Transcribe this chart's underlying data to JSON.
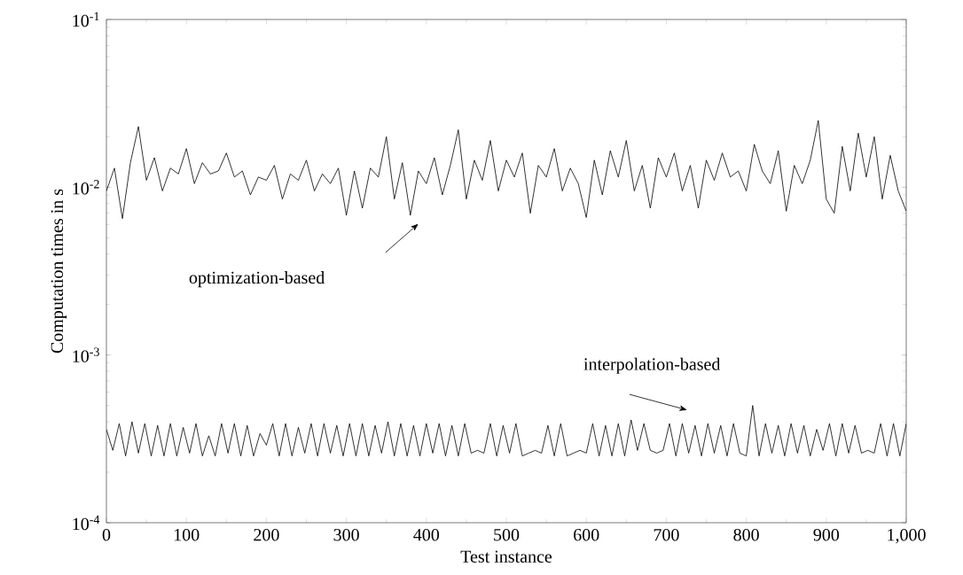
{
  "chart_data": {
    "type": "line",
    "xlabel": "Test instance",
    "ylabel": "Computation times in s",
    "log": true,
    "grid": false,
    "marker": "none",
    "line_style": "solid",
    "xlim": [
      0,
      1000
    ],
    "ylim": [
      0.0001,
      0.1
    ],
    "xticks": [
      0,
      100,
      200,
      300,
      400,
      500,
      600,
      700,
      800,
      900,
      {
        "value": 1000,
        "label": "1,000"
      }
    ],
    "yticks": [
      {
        "value": 0.0001,
        "label": "10$^{-4}$"
      },
      {
        "value": 0.001,
        "label": "10$^{-3}$"
      },
      {
        "value": 0.01,
        "label": "10$^{-2}$"
      },
      {
        "value": 0.1,
        "label": "10$^{-1}$"
      }
    ],
    "annotations": [
      "optimization-based",
      "interpolation-based"
    ],
    "series": [
      {
        "color": "#000000",
        "x": [
          0,
          10,
          20,
          30,
          40,
          50,
          60,
          70,
          80,
          90,
          100,
          110,
          120,
          130,
          140,
          150,
          160,
          170,
          180,
          190,
          200,
          210,
          220,
          230,
          240,
          250,
          260,
          270,
          280,
          290,
          300,
          310,
          320,
          330,
          340,
          350,
          360,
          370,
          380,
          390,
          400,
          410,
          420,
          430,
          440,
          450,
          460,
          470,
          480,
          490,
          500,
          510,
          520,
          530,
          540,
          550,
          560,
          570,
          580,
          590,
          600,
          610,
          620,
          630,
          640,
          650,
          660,
          670,
          680,
          690,
          700,
          710,
          720,
          730,
          740,
          750,
          760,
          770,
          780,
          790,
          800,
          810,
          820,
          830,
          840,
          850,
          860,
          870,
          880,
          890,
          900,
          910,
          920,
          930,
          940,
          950,
          960,
          970,
          980,
          990,
          1000
        ],
        "values": [
          0.0095,
          0.013,
          0.0065,
          0.014,
          0.023,
          0.011,
          0.015,
          0.0095,
          0.013,
          0.012,
          0.017,
          0.0105,
          0.014,
          0.012,
          0.0125,
          0.016,
          0.0115,
          0.0125,
          0.009,
          0.0115,
          0.011,
          0.0135,
          0.0085,
          0.012,
          0.011,
          0.0145,
          0.0095,
          0.012,
          0.0105,
          0.013,
          0.0068,
          0.0125,
          0.0075,
          0.013,
          0.0115,
          0.02,
          0.0085,
          0.014,
          0.0068,
          0.0125,
          0.0105,
          0.015,
          0.009,
          0.0135,
          0.022,
          0.0085,
          0.0145,
          0.011,
          0.019,
          0.0095,
          0.0145,
          0.0115,
          0.016,
          0.007,
          0.0135,
          0.0115,
          0.017,
          0.0095,
          0.013,
          0.0105,
          0.0066,
          0.0145,
          0.009,
          0.0165,
          0.0115,
          0.019,
          0.0095,
          0.0135,
          0.0075,
          0.015,
          0.0115,
          0.016,
          0.0095,
          0.0135,
          0.0075,
          0.0145,
          0.011,
          0.016,
          0.0115,
          0.0125,
          0.0095,
          0.018,
          0.0125,
          0.0105,
          0.0165,
          0.0072,
          0.0135,
          0.0105,
          0.0145,
          0.025,
          0.0085,
          0.007,
          0.0175,
          0.0095,
          0.021,
          0.0115,
          0.02,
          0.0085,
          0.0155,
          0.0095,
          0.0072
        ]
      },
      {
        "color": "#000000",
        "x": [
          0,
          8,
          16,
          24,
          32,
          40,
          48,
          56,
          64,
          72,
          80,
          88,
          96,
          104,
          112,
          120,
          128,
          136,
          144,
          152,
          160,
          168,
          176,
          184,
          192,
          200,
          208,
          216,
          224,
          232,
          240,
          248,
          256,
          264,
          272,
          280,
          288,
          296,
          304,
          312,
          320,
          328,
          336,
          344,
          352,
          360,
          368,
          376,
          384,
          392,
          400,
          408,
          416,
          424,
          432,
          440,
          448,
          456,
          464,
          472,
          480,
          488,
          496,
          504,
          512,
          520,
          528,
          536,
          544,
          552,
          560,
          568,
          576,
          584,
          592,
          600,
          608,
          616,
          624,
          632,
          640,
          648,
          656,
          664,
          672,
          680,
          688,
          696,
          704,
          712,
          720,
          728,
          736,
          744,
          752,
          760,
          768,
          776,
          784,
          792,
          800,
          808,
          816,
          824,
          832,
          840,
          848,
          856,
          864,
          872,
          880,
          888,
          896,
          904,
          912,
          920,
          928,
          936,
          944,
          952,
          960,
          968,
          976,
          984,
          992,
          1000
        ],
        "values": [
          0.00036,
          0.00027,
          0.00039,
          0.00025,
          0.0004,
          0.00026,
          0.00039,
          0.00025,
          0.00038,
          0.00025,
          0.00039,
          0.00025,
          0.00037,
          0.00026,
          0.00039,
          0.00025,
          0.00033,
          0.00025,
          0.00039,
          0.00026,
          0.00039,
          0.00025,
          0.00038,
          0.00025,
          0.00034,
          0.00029,
          0.00039,
          0.00025,
          0.00039,
          0.00025,
          0.00037,
          0.00026,
          0.00039,
          0.00025,
          0.00039,
          0.00026,
          0.00038,
          0.00025,
          0.00039,
          0.00025,
          0.00039,
          0.00025,
          0.00038,
          0.00026,
          0.0004,
          0.00025,
          0.00039,
          0.00025,
          0.00038,
          0.00025,
          0.00039,
          0.00026,
          0.00039,
          0.00025,
          0.00038,
          0.00025,
          0.00039,
          0.00026,
          0.00027,
          0.00026,
          0.00039,
          0.00025,
          0.00038,
          0.00026,
          0.00039,
          0.00025,
          0.00026,
          0.00027,
          0.00026,
          0.00038,
          0.00025,
          0.00039,
          0.00025,
          0.00026,
          0.00027,
          0.00026,
          0.00039,
          0.00025,
          0.00038,
          0.00025,
          0.00039,
          0.00025,
          0.00041,
          0.00027,
          0.00039,
          0.00027,
          0.00026,
          0.00027,
          0.00039,
          0.00025,
          0.00039,
          0.00026,
          0.00038,
          0.00025,
          0.00039,
          0.00026,
          0.00038,
          0.00025,
          0.00039,
          0.00026,
          0.00025,
          0.0005,
          0.00025,
          0.00039,
          0.00026,
          0.00038,
          0.00025,
          0.00039,
          0.00026,
          0.00038,
          0.00025,
          0.00036,
          0.00027,
          0.00039,
          0.00025,
          0.00039,
          0.00026,
          0.00038,
          0.00026,
          0.00027,
          0.00026,
          0.00039,
          0.00025,
          0.00039,
          0.00025,
          0.00039
        ]
      }
    ]
  }
}
